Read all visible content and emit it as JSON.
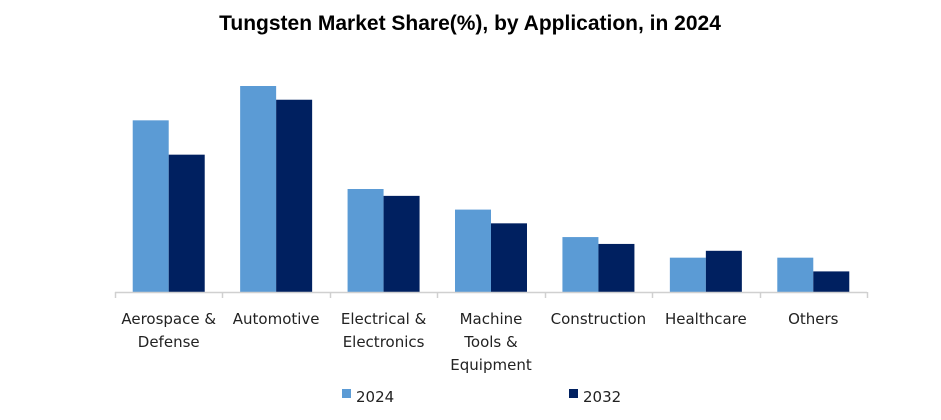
{
  "chart_data": {
    "type": "bar",
    "title": "Tungsten Market Share(%), by Application,  in 2024",
    "xlabel": "",
    "ylabel": "",
    "ylim": [
      0,
      30
    ],
    "grid": false,
    "legend_position": "bottom",
    "categories": [
      [
        "Aerospace &",
        "Defense"
      ],
      [
        "Automotive"
      ],
      [
        "Electrical &",
        "Electronics"
      ],
      [
        "Machine",
        "Tools &",
        "Equipment"
      ],
      [
        "Construction"
      ],
      [
        "Healthcare"
      ],
      [
        "Others"
      ]
    ],
    "series": [
      {
        "name": "2024",
        "color": "#5b9bd5",
        "values": [
          25,
          30,
          15,
          12,
          8,
          5,
          5
        ]
      },
      {
        "name": "2032",
        "color": "#002060",
        "values": [
          20,
          28,
          14,
          10,
          7,
          6,
          3
        ]
      }
    ]
  }
}
